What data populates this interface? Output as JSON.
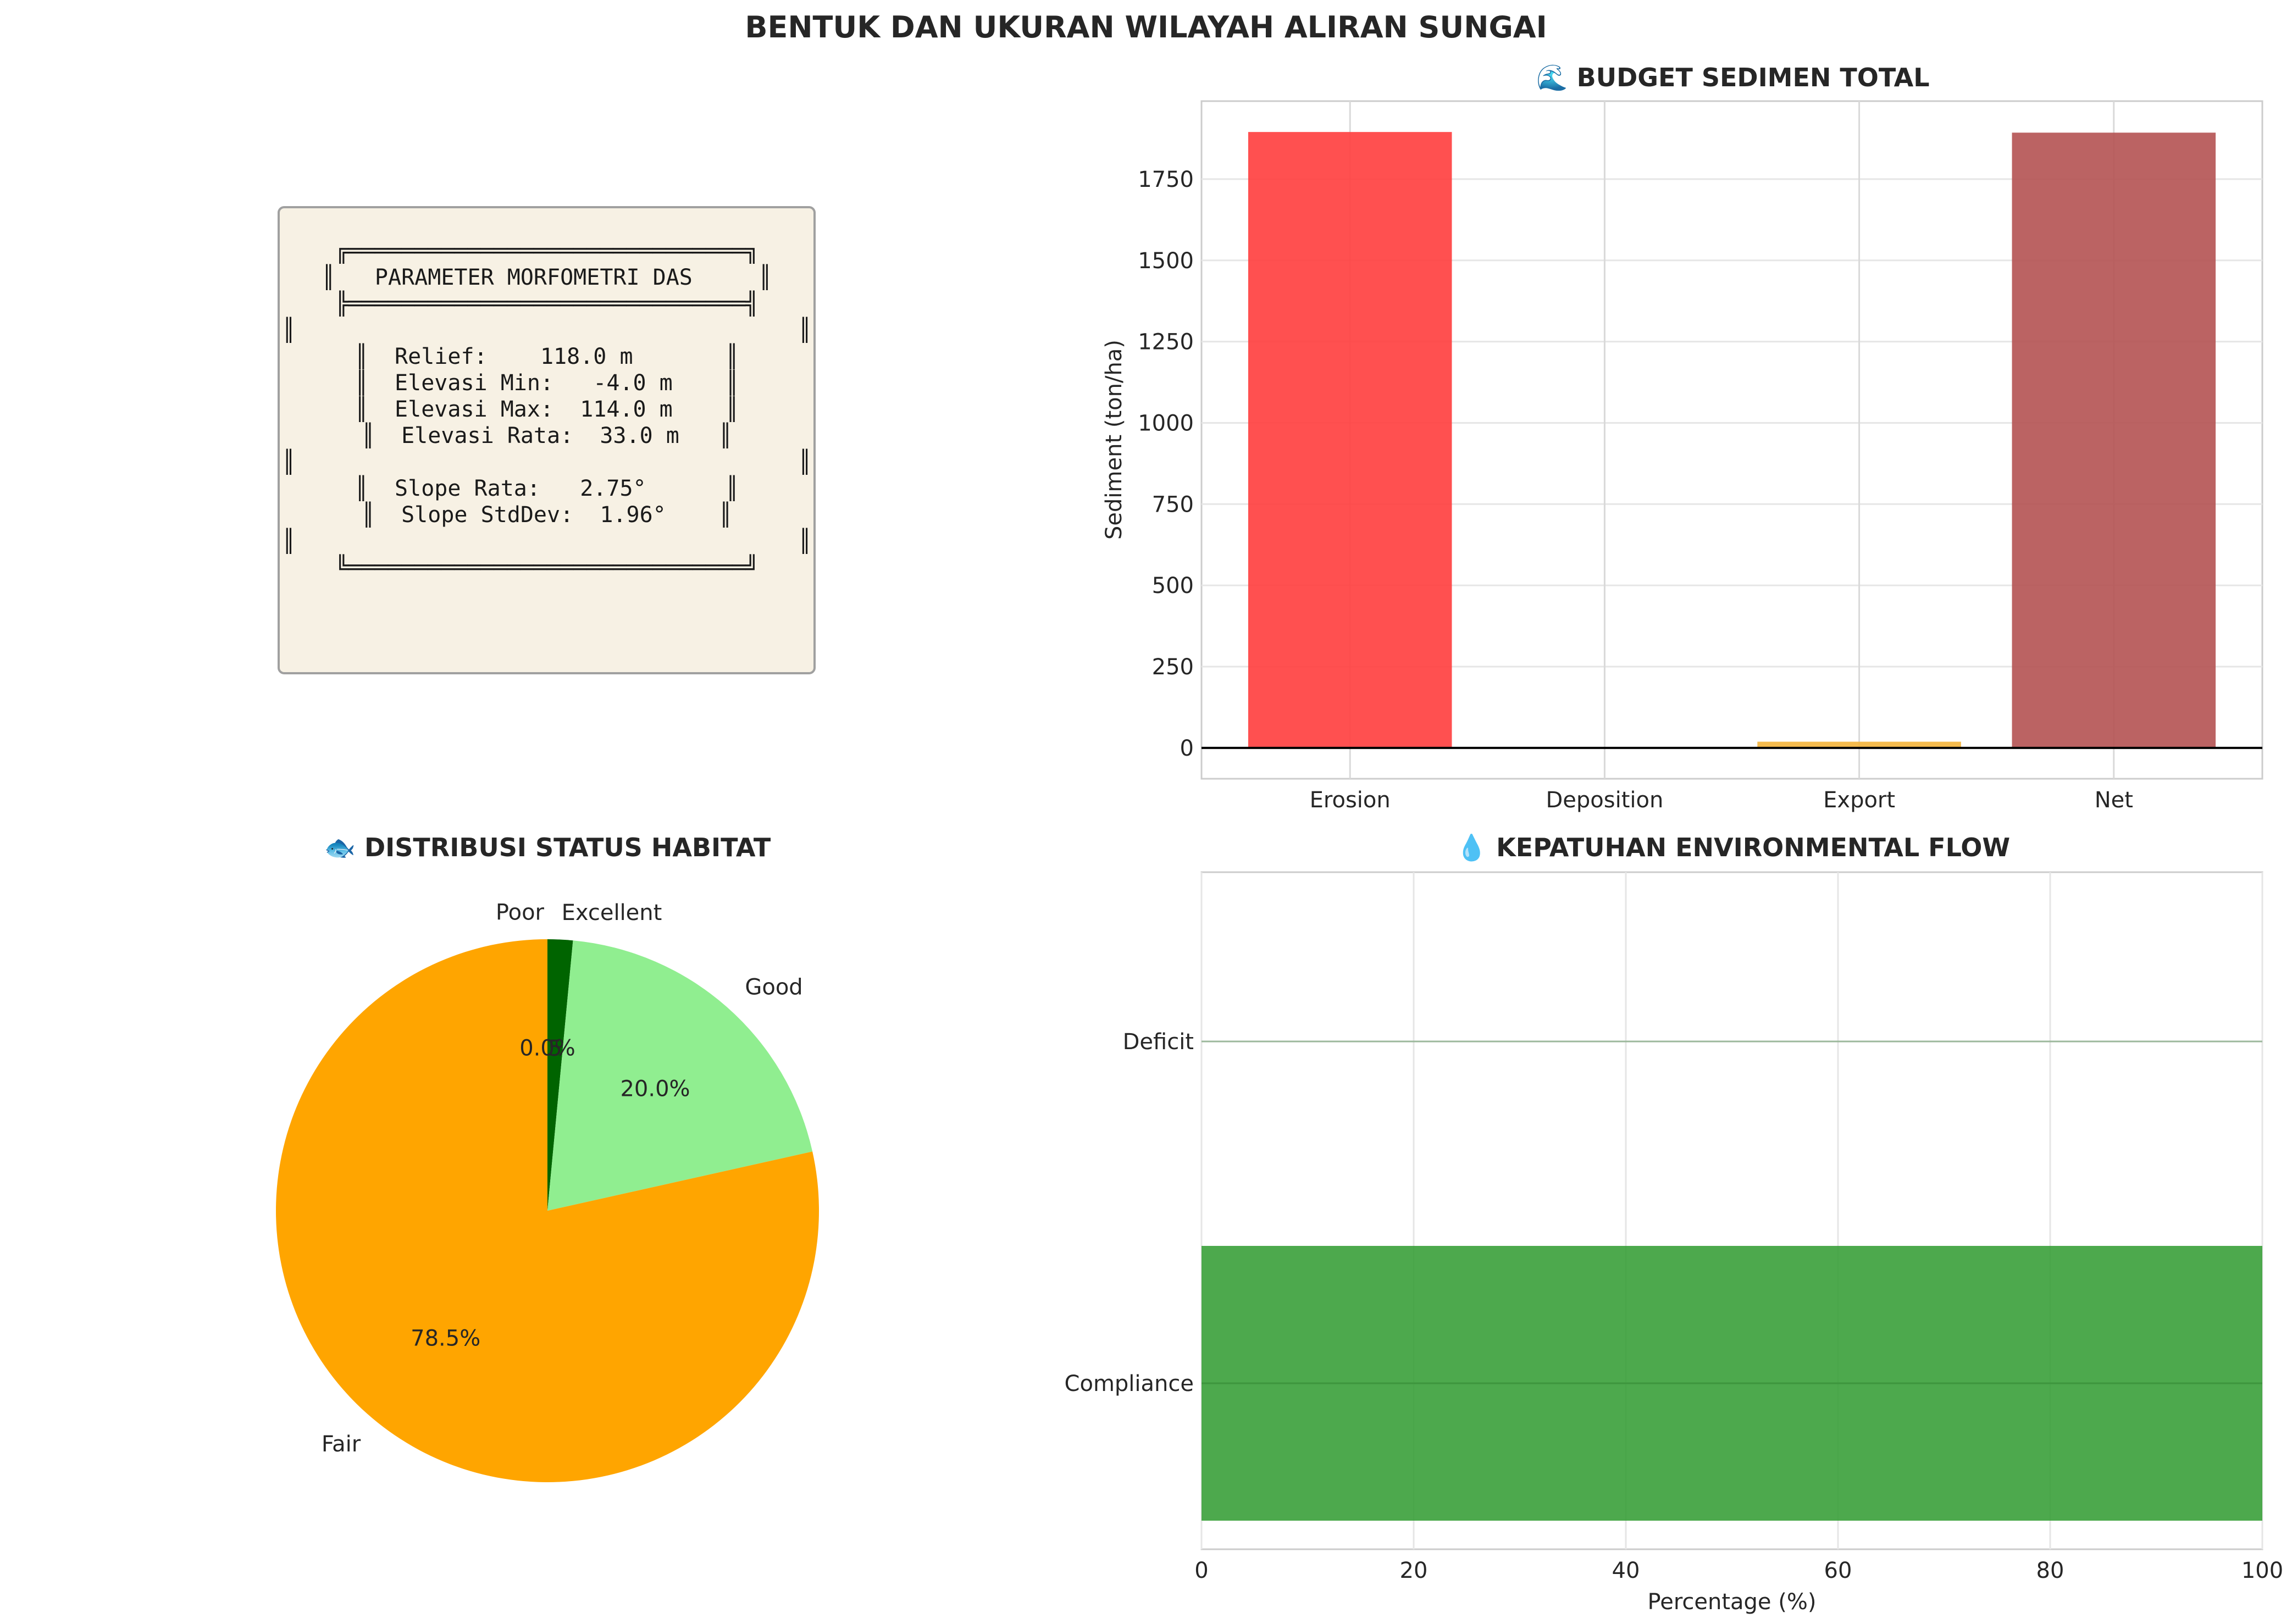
{
  "suptitle": "BENTUK DAN UKURAN WILAYAH ALIRAN SUNGAI",
  "panels": {
    "morphometry": {
      "heading": "PARAMETER MORFOMETRI DAS",
      "lines": [
        "╔══════════════════════════════╗",
        "║   PARAMETER MORFOMETRI DAS     ║",
        "╠══════════════════════════════╣",
        "║                                      ║",
        "║  Relief:    118.0 m       ║",
        "║  Elevasi Min:   -4.0 m    ║",
        "║  Elevasi Max:  114.0 m    ║",
        "║  Elevasi Rata:  33.0 m   ║",
        "║                                      ║",
        "║  Slope Rata:   2.75°      ║",
        "║  Slope StdDev:  1.96°    ║",
        "║                                      ║",
        "╚══════════════════════════════╝"
      ],
      "colors": {
        "box_fill": "#f7f1e4",
        "box_edge": "#a0a0a0"
      }
    }
  },
  "chart_data": [
    {
      "type": "bar",
      "title": "🌊 BUDGET SEDIMEN TOTAL",
      "xlabel": "",
      "ylabel": "Sediment (ton/ha)",
      "categories": [
        "Erosion",
        "Deposition",
        "Export",
        "Net"
      ],
      "values": [
        1895,
        0,
        19,
        1893
      ],
      "colors": [
        "#ff3d3d",
        "#3d85c6",
        "#f3b23a",
        "#b45252"
      ],
      "ylim": [
        -95,
        1990
      ],
      "yticks": [
        0,
        250,
        500,
        750,
        1000,
        1250,
        1500,
        1750
      ],
      "grid": true
    },
    {
      "type": "pie",
      "title": "🐟 DISTRIBUSI STATUS HABITAT",
      "labels": [
        "Excellent",
        "Good",
        "Fair",
        "Poor"
      ],
      "values": [
        1.5,
        20.0,
        78.5,
        0.0
      ],
      "pct_labels": [
        "1.5%",
        "20.0%",
        "78.5%",
        "0.0%"
      ],
      "colors": [
        "#006400",
        "#90ee90",
        "#ffa500",
        "#ff0000"
      ],
      "startangle": 90,
      "direction": "clockwise"
    },
    {
      "type": "bar",
      "orientation": "horizontal",
      "title": "💧 KEPATUHAN ENVIRONMENTAL FLOW",
      "xlabel": "Percentage (%)",
      "ylabel": "",
      "categories": [
        "Compliance",
        "Deficit"
      ],
      "values": [
        100,
        0
      ],
      "colors": [
        "#2e9a2e",
        "#d62728"
      ],
      "xlim": [
        0,
        100
      ],
      "xticks": [
        0,
        20,
        40,
        60,
        80,
        100
      ],
      "grid": true
    }
  ]
}
